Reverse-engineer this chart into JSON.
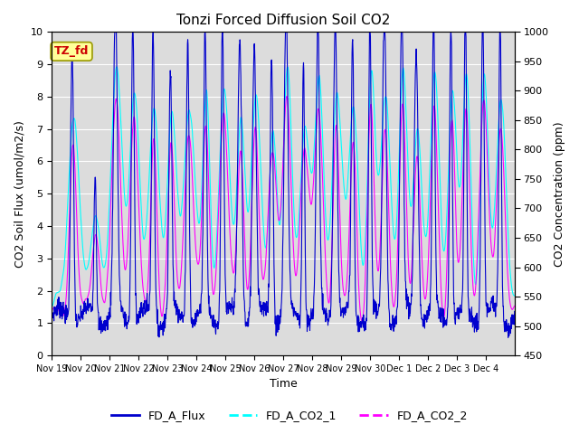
{
  "title": "Tonzi Forced Diffusion Soil CO2",
  "xlabel": "Time",
  "ylabel_left": "CO2 Soil Flux (umol/m2/s)",
  "ylabel_right": "CO2 Concentration (ppm)",
  "ylim_left": [
    0.0,
    10.0
  ],
  "ylim_right": [
    450,
    1000
  ],
  "yticks_left": [
    0.0,
    1.0,
    2.0,
    3.0,
    4.0,
    5.0,
    6.0,
    7.0,
    8.0,
    9.0,
    10.0
  ],
  "yticks_right": [
    450,
    500,
    550,
    600,
    650,
    700,
    750,
    800,
    850,
    900,
    950,
    1000
  ],
  "xtick_labels": [
    "Nov 19",
    "Nov 20",
    "Nov 21",
    "Nov 22",
    "Nov 23",
    "Nov 24",
    "Nov 25",
    "Nov 26",
    "Nov 27",
    "Nov 28",
    "Nov 29",
    "Nov 30",
    "Dec 1",
    "Dec 2",
    "Dec 3",
    "Dec 4"
  ],
  "colors": {
    "flux": "#0000CD",
    "co2_1": "#00FFFF",
    "co2_2": "#FF00FF"
  },
  "legend_labels": [
    "FD_A_Flux",
    "FD_A_CO2_1",
    "FD_A_CO2_2"
  ],
  "tag_text": "TZ_fd",
  "tag_bg": "#FFFF99",
  "tag_fg": "#CC0000",
  "bg_color": "#DCDCDC",
  "linewidth": 0.8,
  "n_days": 16,
  "pts_per_day": 96
}
